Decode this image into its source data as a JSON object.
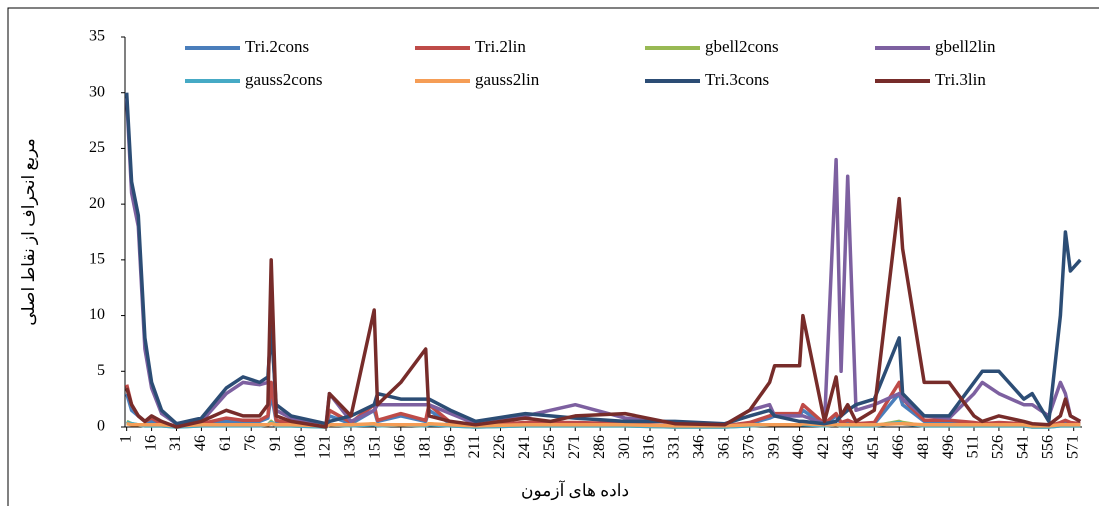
{
  "chart_data": {
    "type": "line",
    "x_label": "داده های آزمون",
    "y_label": "مربع انحراف از نقاط اصلی",
    "x": [
      1,
      4,
      8,
      12,
      16,
      22,
      31,
      46,
      61,
      71,
      81,
      86,
      88,
      91,
      100,
      121,
      123,
      136,
      150,
      152,
      166,
      181,
      183,
      196,
      211,
      241,
      256,
      271,
      301,
      331,
      361,
      376,
      388,
      391,
      406,
      408,
      421,
      428,
      431,
      435,
      440,
      451,
      466,
      468,
      481,
      496,
      511,
      516,
      526,
      541,
      546,
      556,
      563,
      566,
      569,
      575
    ],
    "xlim": [
      0,
      576
    ],
    "xticks": [
      1,
      16,
      31,
      46,
      61,
      76,
      91,
      106,
      121,
      136,
      151,
      166,
      181,
      196,
      211,
      226,
      241,
      256,
      271,
      286,
      301,
      316,
      331,
      346,
      361,
      376,
      391,
      406,
      421,
      436,
      451,
      466,
      481,
      496,
      511,
      526,
      541,
      556,
      571
    ],
    "ylim": [
      0,
      35
    ],
    "yticks": [
      0,
      5,
      10,
      15,
      20,
      25,
      30,
      35
    ],
    "series": [
      {
        "name": "Tri.2cons",
        "color": "#4a7ebb",
        "values": [
          3,
          1.5,
          1,
          0.5,
          0.5,
          0.3,
          0.1,
          0.2,
          0.5,
          0.5,
          0.5,
          0.8,
          3,
          0.5,
          0.3,
          0.1,
          1,
          0.3,
          1.5,
          0.5,
          1,
          0.5,
          1.5,
          0.3,
          0.1,
          0.3,
          0.3,
          0.3,
          0.2,
          0.1,
          0.1,
          0.3,
          0.8,
          1,
          1,
          1.5,
          0.2,
          1,
          0.3,
          0.5,
          0.2,
          0.3,
          3,
          2,
          0.5,
          0.5,
          0.3,
          0.2,
          0.3,
          0.2,
          0.1,
          0.1,
          0.3,
          0.5,
          0.3,
          0.2
        ]
      },
      {
        "name": "Tri.2lin",
        "color": "#be4b48",
        "values": [
          3.8,
          2,
          1,
          0.5,
          0.8,
          0.3,
          0.1,
          0.3,
          0.8,
          0.6,
          0.6,
          1,
          4,
          0.6,
          0.3,
          0.1,
          1.5,
          0.4,
          2,
          0.6,
          1.2,
          0.6,
          2,
          0.4,
          0.1,
          0.4,
          0.4,
          0.4,
          0.3,
          0.1,
          0.1,
          0.4,
          1,
          1.2,
          1.2,
          2,
          0.3,
          1.2,
          0.4,
          0.6,
          0.3,
          0.4,
          4,
          2.5,
          0.6,
          0.6,
          0.4,
          0.3,
          0.4,
          0.3,
          0.1,
          0.1,
          0.4,
          0.6,
          0.4,
          0.3
        ]
      },
      {
        "name": "gbell2cons",
        "color": "#98b954",
        "values": [
          0.5,
          0.3,
          0.2,
          0.1,
          0.1,
          0.1,
          0,
          0.1,
          0.2,
          0.2,
          0.2,
          0.2,
          0.5,
          0.1,
          0.1,
          0,
          0.2,
          0.1,
          0.3,
          0.1,
          0.2,
          0.1,
          0.3,
          0.1,
          0,
          0.1,
          0.1,
          0.1,
          0.1,
          0,
          0,
          0.1,
          0.2,
          0.2,
          0.2,
          0.3,
          0.1,
          0.2,
          0.1,
          0.1,
          0.1,
          0.1,
          0.5,
          0.4,
          0.1,
          0.1,
          0.1,
          0.1,
          0.1,
          0.1,
          0,
          0,
          0.1,
          0.1,
          0.1,
          0.1
        ]
      },
      {
        "name": "gbell2lin",
        "color": "#7d60a0",
        "values": [
          29.5,
          21,
          18,
          7,
          3.5,
          1.2,
          0.3,
          0.5,
          3,
          4,
          3.8,
          4,
          10,
          1.5,
          0.8,
          0.2,
          3,
          0.5,
          1.5,
          2,
          2,
          2,
          2,
          1.2,
          0.3,
          1,
          1.5,
          2,
          0.8,
          0.4,
          0.2,
          1.5,
          2,
          1,
          1,
          1,
          0.3,
          24,
          5,
          22.5,
          1.5,
          2,
          3,
          2.5,
          1,
          0.8,
          3,
          4,
          3,
          2,
          2,
          1,
          4,
          3,
          1,
          0.5
        ]
      },
      {
        "name": "gauss2cons",
        "color": "#46aac5",
        "values": [
          0.4,
          0.3,
          0.2,
          0.1,
          0.1,
          0.1,
          0,
          0.1,
          0.1,
          0.1,
          0.1,
          0.2,
          0.4,
          0.1,
          0.1,
          0,
          0.2,
          0.1,
          0.2,
          0.1,
          0.2,
          0.1,
          0.2,
          0.1,
          0,
          0.1,
          0.1,
          0.1,
          0.1,
          0,
          0,
          0.1,
          0.2,
          0.2,
          0.2,
          0.2,
          0.1,
          0.2,
          0.1,
          0.1,
          0.1,
          0.1,
          0.4,
          0.3,
          0.1,
          0.1,
          0.1,
          0.1,
          0.1,
          0.1,
          0,
          0,
          0.1,
          0.1,
          0.1,
          0.1
        ]
      },
      {
        "name": "gauss2lin",
        "color": "#f59d56",
        "values": [
          0.3,
          0.2,
          0.2,
          0.2,
          0.2,
          0.2,
          0.1,
          0.2,
          0.2,
          0.2,
          0.2,
          0.2,
          0.3,
          0.2,
          0.2,
          0.1,
          0.2,
          0.2,
          0.3,
          0.2,
          0.2,
          0.2,
          0.3,
          0.2,
          0.1,
          0.2,
          0.2,
          0.2,
          0.2,
          0.1,
          0.1,
          0.2,
          0.2,
          0.2,
          0.2,
          0.3,
          0.2,
          0.2,
          0.2,
          0.2,
          0.2,
          0.2,
          0.3,
          0.3,
          0.2,
          0.2,
          0.2,
          0.2,
          0.2,
          0.2,
          0.1,
          0.1,
          0.2,
          0.2,
          0.2,
          0.2
        ]
      },
      {
        "name": "Tri.3cons",
        "color": "#2c4d75",
        "values": [
          30,
          22,
          19,
          8,
          4,
          1.5,
          0.3,
          0.8,
          3.5,
          4.5,
          4,
          4.5,
          9,
          2,
          1,
          0.3,
          0.5,
          1,
          2,
          3,
          2.5,
          2.5,
          2.5,
          1.5,
          0.5,
          1.2,
          1,
          0.8,
          0.5,
          0.5,
          0.3,
          1,
          1.5,
          1,
          0.5,
          0.5,
          0.3,
          0.5,
          1,
          1.5,
          2,
          2.5,
          8,
          3,
          1,
          1,
          4,
          5,
          5,
          2.5,
          3,
          0.5,
          10,
          17.5,
          14,
          15
        ]
      },
      {
        "name": "Tri.3lin",
        "color": "#772c2a",
        "values": [
          3.5,
          2,
          1,
          0.5,
          1,
          0.5,
          0,
          0.5,
          1.5,
          1,
          1,
          2,
          15,
          1,
          0.5,
          0,
          3,
          1,
          10.5,
          2,
          4,
          7,
          1,
          0.5,
          0.2,
          0.8,
          0.5,
          1,
          1.2,
          0.3,
          0.2,
          1.5,
          4,
          5.5,
          5.5,
          10,
          0.5,
          4.5,
          1,
          2,
          0.5,
          1.5,
          20.5,
          16,
          4,
          4,
          1,
          0.5,
          1,
          0.5,
          0.3,
          0.2,
          1,
          2.5,
          1,
          0.5
        ]
      }
    ]
  }
}
